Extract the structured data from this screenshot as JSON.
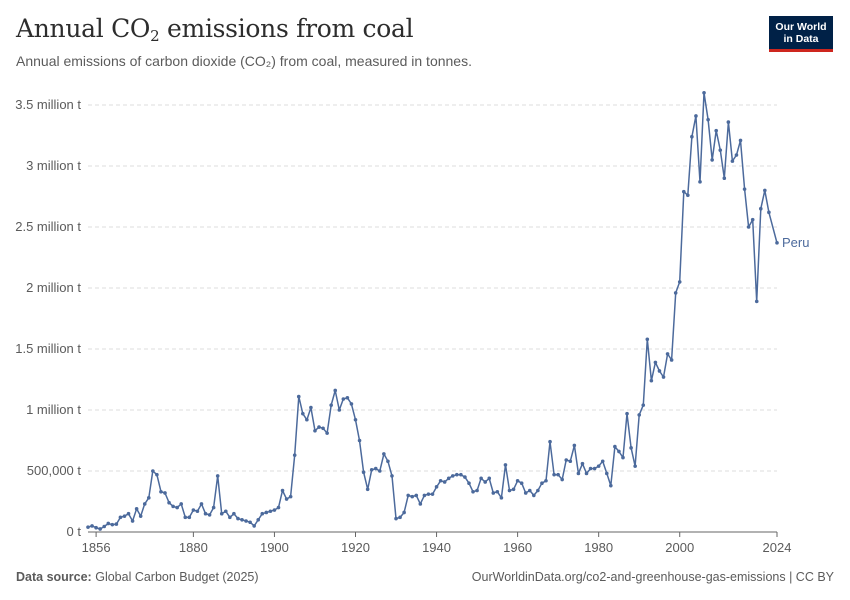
{
  "header": {
    "title_main": "Annual CO",
    "title_sub": "2",
    "title_rest": " emissions from coal",
    "subtitle": "Annual emissions of carbon dioxide (CO₂) from coal, measured in tonnes."
  },
  "logo": {
    "line1": "Our World",
    "line2": "in Data"
  },
  "footer": {
    "source_label": "Data source:",
    "source_value": "Global Carbon Budget (2025)",
    "url_license": "OurWorldinData.org/co2-and-greenhouse-gas-emissions | CC BY"
  },
  "colors": {
    "series": "#4c6a9c",
    "grid": "#dddddd",
    "axis": "#666666",
    "text": "#5b5b5b"
  },
  "chart_data": {
    "type": "line",
    "title": "Annual CO₂ emissions from coal",
    "xlabel": "",
    "ylabel": "",
    "xlim": [
      1854,
      2024
    ],
    "ylim": [
      0,
      3500000
    ],
    "x_ticks": [
      1856,
      1880,
      1900,
      1920,
      1940,
      1960,
      1980,
      2000,
      2024
    ],
    "y_ticks": [
      {
        "value": 0,
        "label": "0 t"
      },
      {
        "value": 500000,
        "label": "500,000 t"
      },
      {
        "value": 1000000,
        "label": "1 million t"
      },
      {
        "value": 1500000,
        "label": "1.5 million t"
      },
      {
        "value": 2000000,
        "label": "2 million t"
      },
      {
        "value": 2500000,
        "label": "2.5 million t"
      },
      {
        "value": 3000000,
        "label": "3 million t"
      },
      {
        "value": 3500000,
        "label": "3.5 million t"
      }
    ],
    "grid": true,
    "series": [
      {
        "name": "Peru",
        "x": [
          1854,
          1855,
          1856,
          1857,
          1858,
          1859,
          1860,
          1861,
          1862,
          1863,
          1864,
          1865,
          1866,
          1867,
          1868,
          1869,
          1870,
          1871,
          1872,
          1873,
          1874,
          1875,
          1876,
          1877,
          1878,
          1879,
          1880,
          1881,
          1882,
          1883,
          1884,
          1885,
          1886,
          1887,
          1888,
          1889,
          1890,
          1891,
          1892,
          1893,
          1894,
          1895,
          1896,
          1897,
          1898,
          1899,
          1900,
          1901,
          1902,
          1903,
          1904,
          1905,
          1906,
          1907,
          1908,
          1909,
          1910,
          1911,
          1912,
          1913,
          1914,
          1915,
          1916,
          1917,
          1918,
          1919,
          1920,
          1921,
          1922,
          1923,
          1924,
          1925,
          1926,
          1927,
          1928,
          1929,
          1930,
          1931,
          1932,
          1933,
          1934,
          1935,
          1936,
          1937,
          1938,
          1939,
          1940,
          1941,
          1942,
          1943,
          1944,
          1945,
          1946,
          1947,
          1948,
          1949,
          1950,
          1951,
          1952,
          1953,
          1954,
          1955,
          1956,
          1957,
          1958,
          1959,
          1960,
          1961,
          1962,
          1963,
          1964,
          1965,
          1966,
          1967,
          1968,
          1969,
          1970,
          1971,
          1972,
          1973,
          1974,
          1975,
          1976,
          1977,
          1978,
          1979,
          1980,
          1981,
          1982,
          1983,
          1984,
          1985,
          1986,
          1987,
          1988,
          1989,
          1990,
          1991,
          1992,
          1993,
          1994,
          1995,
          1996,
          1997,
          1998,
          1999,
          2000,
          2001,
          2002,
          2003,
          2004,
          2005,
          2006,
          2007,
          2008,
          2009,
          2010,
          2011,
          2012,
          2013,
          2014,
          2015,
          2016,
          2017,
          2018,
          2019,
          2020,
          2021,
          2022,
          2024
        ],
        "values": [
          40000,
          50000,
          35000,
          25000,
          45000,
          70000,
          60000,
          65000,
          120000,
          130000,
          150000,
          90000,
          190000,
          130000,
          230000,
          280000,
          500000,
          470000,
          330000,
          320000,
          240000,
          210000,
          200000,
          230000,
          120000,
          120000,
          180000,
          170000,
          230000,
          150000,
          140000,
          200000,
          460000,
          150000,
          170000,
          120000,
          150000,
          110000,
          100000,
          90000,
          80000,
          50000,
          100000,
          150000,
          160000,
          170000,
          180000,
          200000,
          340000,
          270000,
          290000,
          630000,
          1110000,
          970000,
          920000,
          1020000,
          830000,
          860000,
          850000,
          810000,
          1040000,
          1160000,
          1000000,
          1090000,
          1100000,
          1050000,
          920000,
          750000,
          490000,
          350000,
          510000,
          520000,
          500000,
          640000,
          580000,
          460000,
          110000,
          120000,
          160000,
          300000,
          290000,
          300000,
          230000,
          300000,
          310000,
          310000,
          370000,
          420000,
          410000,
          440000,
          460000,
          470000,
          470000,
          450000,
          400000,
          330000,
          340000,
          440000,
          410000,
          440000,
          320000,
          330000,
          280000,
          550000,
          340000,
          350000,
          420000,
          400000,
          320000,
          340000,
          300000,
          340000,
          400000,
          420000,
          740000,
          470000,
          470000,
          430000,
          590000,
          580000,
          710000,
          480000,
          560000,
          480000,
          520000,
          520000,
          540000,
          580000,
          480000,
          380000,
          700000,
          660000,
          610000,
          970000,
          690000,
          540000,
          960000,
          1040000,
          1580000,
          1240000,
          1390000,
          1320000,
          1270000,
          1460000,
          1410000,
          1960000,
          2050000,
          2790000,
          2760000,
          3240000,
          3410000,
          2870000,
          3600000,
          3380000,
          3050000,
          3290000,
          3130000,
          2900000,
          3360000,
          3040000,
          3090000,
          3210000,
          2810000,
          2500000,
          2560000,
          1890000,
          2650000,
          2800000,
          2620000,
          2370000
        ]
      }
    ]
  }
}
